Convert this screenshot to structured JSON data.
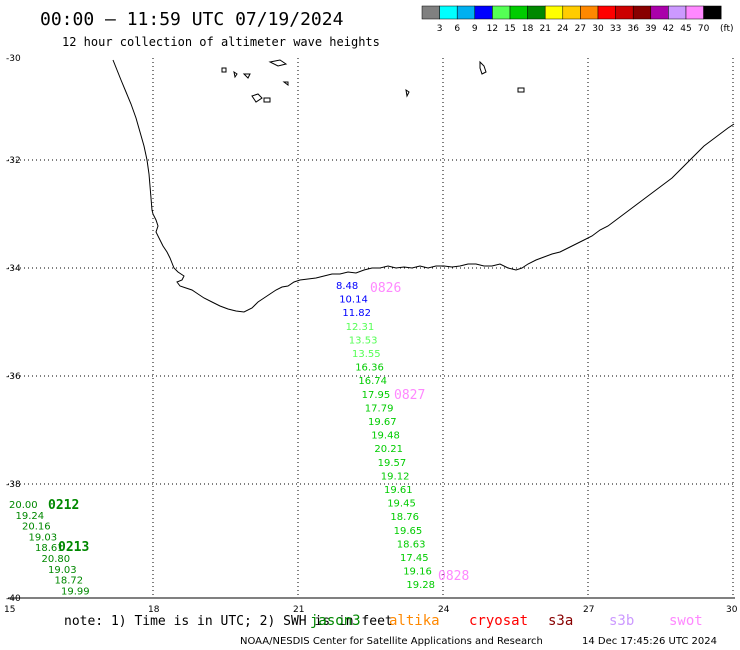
{
  "title": "00:00 – 11:59 UTC 07/19/2024",
  "subtitle": "12 hour collection of altimeter wave heights",
  "legend": {
    "unit": "(ft)",
    "items": [
      {
        "label": "3",
        "color": "#808080"
      },
      {
        "label": "6",
        "color": "#00ffff"
      },
      {
        "label": "9",
        "color": "#00b0f0"
      },
      {
        "label": "12",
        "color": "#0000ff"
      },
      {
        "label": "15",
        "color": "#55ff55"
      },
      {
        "label": "18",
        "color": "#00cc00"
      },
      {
        "label": "21",
        "color": "#008800"
      },
      {
        "label": "24",
        "color": "#ffff00"
      },
      {
        "label": "27",
        "color": "#ffcc00"
      },
      {
        "label": "30",
        "color": "#ff8800"
      },
      {
        "label": "33",
        "color": "#ff0000"
      },
      {
        "label": "36",
        "color": "#cc0000"
      },
      {
        "label": "39",
        "color": "#880000"
      },
      {
        "label": "42",
        "color": "#aa00aa"
      },
      {
        "label": "45",
        "color": "#cc99ff"
      },
      {
        "label": "70",
        "color": "#ff88ff"
      },
      {
        "label": "",
        "color": "#000000"
      }
    ]
  },
  "lat_ticks": [
    "-30",
    "-32",
    "-34",
    "-36",
    "-38",
    "-40"
  ],
  "lon_ticks": [
    "15",
    "18",
    "21",
    "24",
    "27",
    "30"
  ],
  "note": "note: 1) Time is in UTC; 2) SWH is in feet",
  "satellites": [
    {
      "name": "jason3",
      "color": "#008800"
    },
    {
      "name": "altika",
      "color": "#ff8800"
    },
    {
      "name": "cryosat",
      "color": "#ff0000"
    },
    {
      "name": "s3a",
      "color": "#880000"
    },
    {
      "name": "s3b",
      "color": "#cc99ff"
    },
    {
      "name": "swot",
      "color": "#ff88ff"
    }
  ],
  "footer_left": "NOAA/NESDIS Center for Satellite Applications and Research",
  "footer_right": "14 Dec 17:45:26 UTC 2024",
  "tracks": [
    {
      "time_labels": [
        {
          "text": "0826",
          "color": "#ff88ff"
        },
        {
          "text": "0827",
          "color": "#ff88ff"
        },
        {
          "text": "0828",
          "color": "#ff88ff"
        }
      ],
      "values": [
        {
          "text": "8.48",
          "color": "#0000ff"
        },
        {
          "text": "10.14",
          "color": "#0000ff"
        },
        {
          "text": "11.82",
          "color": "#0000ff"
        },
        {
          "text": "12.31",
          "color": "#55ff55"
        },
        {
          "text": "13.53",
          "color": "#55ff55"
        },
        {
          "text": "13.55",
          "color": "#55ff55"
        },
        {
          "text": "16.36",
          "color": "#00cc00"
        },
        {
          "text": "16.74",
          "color": "#00cc00"
        },
        {
          "text": "17.95",
          "color": "#00cc00"
        },
        {
          "text": "17.79",
          "color": "#00cc00"
        },
        {
          "text": "19.67",
          "color": "#00cc00"
        },
        {
          "text": "19.48",
          "color": "#00cc00"
        },
        {
          "text": "20.21",
          "color": "#00cc00"
        },
        {
          "text": "19.57",
          "color": "#00cc00"
        },
        {
          "text": "19.12",
          "color": "#00cc00"
        },
        {
          "text": "19.61",
          "color": "#00cc00"
        },
        {
          "text": "19.45",
          "color": "#00cc00"
        },
        {
          "text": "18.76",
          "color": "#00cc00"
        },
        {
          "text": "19.65",
          "color": "#00cc00"
        },
        {
          "text": "18.63",
          "color": "#00cc00"
        },
        {
          "text": "17.45",
          "color": "#00cc00"
        },
        {
          "text": "19.16",
          "color": "#00cc00"
        },
        {
          "text": "19.28",
          "color": "#00cc00"
        }
      ]
    },
    {
      "time_labels": [
        {
          "text": "0212",
          "color": "#008800"
        },
        {
          "text": "0213",
          "color": "#008800"
        }
      ],
      "values": [
        {
          "text": "20.00",
          "color": "#008800"
        },
        {
          "text": "19.24",
          "color": "#008800"
        },
        {
          "text": "20.16",
          "color": "#008800"
        },
        {
          "text": "19.03",
          "color": "#008800"
        },
        {
          "text": "18.61",
          "color": "#008800"
        },
        {
          "text": "20.80",
          "color": "#008800"
        },
        {
          "text": "19.03",
          "color": "#008800"
        },
        {
          "text": "18.72",
          "color": "#008800"
        },
        {
          "text": "19.99",
          "color": "#008800"
        }
      ]
    }
  ]
}
